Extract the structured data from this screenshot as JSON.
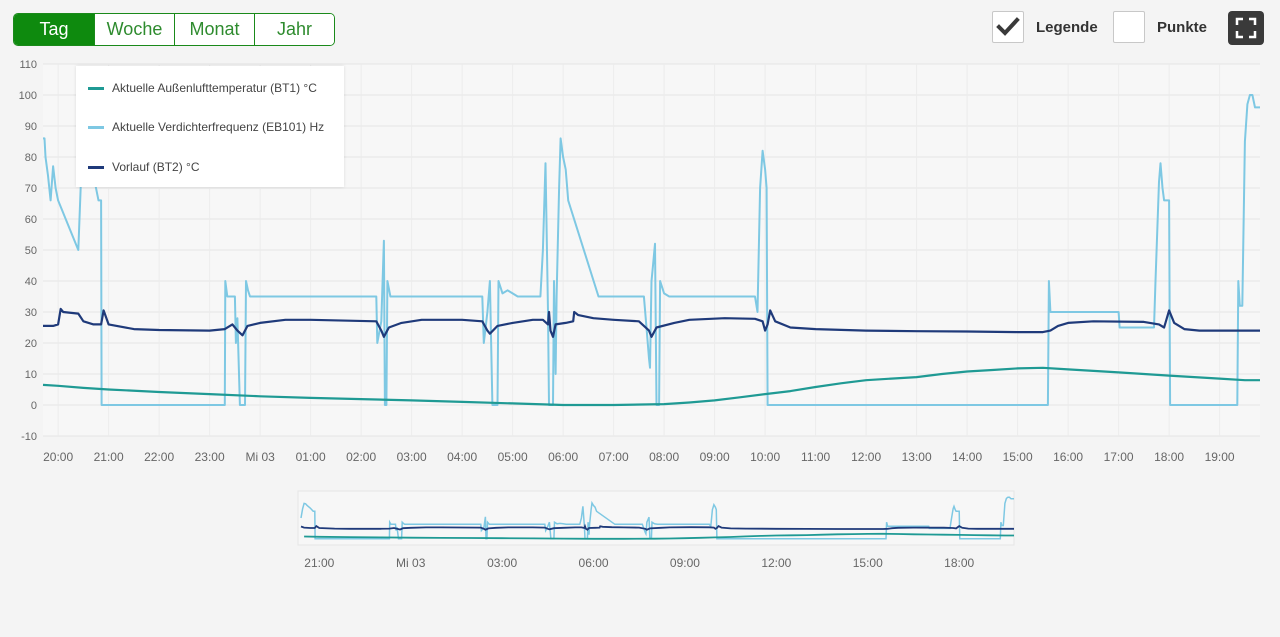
{
  "toolbar": {
    "ranges": [
      "Tag",
      "Woche",
      "Monat",
      "Jahr"
    ],
    "active_range": "Tag",
    "legend_label": "Legende",
    "legend_checked": true,
    "points_label": "Punkte",
    "points_checked": false,
    "fullscreen_icon": "fullscreen-icon"
  },
  "colors": {
    "accent": "#0e8a0e",
    "outdoor": "#1f9a94",
    "compressor": "#7ec8e3",
    "flow": "#1f3a7a"
  },
  "chart_data": {
    "type": "line",
    "ylim": [
      -10,
      110
    ],
    "yticks": [
      -10,
      0,
      10,
      20,
      30,
      40,
      50,
      60,
      70,
      80,
      90,
      100,
      110
    ],
    "x_range_hours": [
      19.7,
      19.82
    ],
    "xticks": [
      {
        "h": 20,
        "label": "20:00"
      },
      {
        "h": 21,
        "label": "21:00"
      },
      {
        "h": 22,
        "label": "22:00"
      },
      {
        "h": 23,
        "label": "23:00"
      },
      {
        "h": 24,
        "label": "Mi 03"
      },
      {
        "h": 25,
        "label": "01:00"
      },
      {
        "h": 26,
        "label": "02:00"
      },
      {
        "h": 27,
        "label": "03:00"
      },
      {
        "h": 28,
        "label": "04:00"
      },
      {
        "h": 29,
        "label": "05:00"
      },
      {
        "h": 30,
        "label": "06:00"
      },
      {
        "h": 31,
        "label": "07:00"
      },
      {
        "h": 32,
        "label": "08:00"
      },
      {
        "h": 33,
        "label": "09:00"
      },
      {
        "h": 34,
        "label": "10:00"
      },
      {
        "h": 35,
        "label": "11:00"
      },
      {
        "h": 36,
        "label": "12:00"
      },
      {
        "h": 37,
        "label": "13:00"
      },
      {
        "h": 38,
        "label": "14:00"
      },
      {
        "h": 39,
        "label": "15:00"
      },
      {
        "h": 40,
        "label": "16:00"
      },
      {
        "h": 41,
        "label": "17:00"
      },
      {
        "h": 42,
        "label": "18:00"
      },
      {
        "h": 43,
        "label": "19:00"
      }
    ],
    "nav_xticks": [
      {
        "h": 21,
        "label": "21:00"
      },
      {
        "h": 24,
        "label": "Mi 03"
      },
      {
        "h": 27,
        "label": "03:00"
      },
      {
        "h": 30,
        "label": "06:00"
      },
      {
        "h": 33,
        "label": "09:00"
      },
      {
        "h": 36,
        "label": "12:00"
      },
      {
        "h": 39,
        "label": "15:00"
      },
      {
        "h": 42,
        "label": "18:00"
      }
    ],
    "series": [
      {
        "name": "Aktuelle Außenlufttemperatur (BT1) °C",
        "key": "outdoor",
        "points": [
          [
            19.7,
            6.5
          ],
          [
            20.0,
            6.2
          ],
          [
            20.5,
            5.5
          ],
          [
            21.0,
            5.0
          ],
          [
            22.0,
            4.2
          ],
          [
            23.0,
            3.5
          ],
          [
            24.0,
            2.8
          ],
          [
            25.0,
            2.3
          ],
          [
            26.0,
            1.9
          ],
          [
            27.0,
            1.5
          ],
          [
            28.0,
            1.0
          ],
          [
            29.0,
            0.5
          ],
          [
            30.0,
            0.0
          ],
          [
            31.0,
            0.0
          ],
          [
            32.0,
            0.3
          ],
          [
            32.5,
            0.8
          ],
          [
            33.0,
            1.5
          ],
          [
            33.5,
            2.5
          ],
          [
            34.0,
            3.5
          ],
          [
            34.5,
            4.5
          ],
          [
            35.0,
            5.8
          ],
          [
            35.5,
            7.0
          ],
          [
            36.0,
            8.0
          ],
          [
            36.5,
            8.5
          ],
          [
            37.0,
            9.0
          ],
          [
            37.5,
            10.0
          ],
          [
            38.0,
            10.8
          ],
          [
            38.5,
            11.3
          ],
          [
            39.0,
            11.8
          ],
          [
            39.5,
            12.0
          ],
          [
            40.0,
            11.5
          ],
          [
            40.5,
            11.0
          ],
          [
            41.0,
            10.5
          ],
          [
            41.5,
            10.0
          ],
          [
            42.0,
            9.5
          ],
          [
            42.5,
            9.0
          ],
          [
            43.0,
            8.5
          ],
          [
            43.5,
            8.0
          ],
          [
            43.8,
            8.0
          ]
        ]
      },
      {
        "name": "Aktuelle Verdichterfrequenz (EB101) Hz",
        "key": "compressor",
        "points": [
          [
            19.7,
            86
          ],
          [
            19.73,
            86
          ],
          [
            19.75,
            80
          ],
          [
            19.8,
            74
          ],
          [
            19.85,
            66
          ],
          [
            19.9,
            77
          ],
          [
            19.95,
            70
          ],
          [
            20.0,
            66
          ],
          [
            20.4,
            50
          ],
          [
            20.45,
            72
          ],
          [
            20.5,
            85
          ],
          [
            20.55,
            84
          ],
          [
            20.6,
            80
          ],
          [
            20.7,
            74
          ],
          [
            20.8,
            66
          ],
          [
            20.85,
            66
          ],
          [
            20.86,
            0
          ],
          [
            23.3,
            0
          ],
          [
            23.31,
            40
          ],
          [
            23.35,
            35
          ],
          [
            23.5,
            35
          ],
          [
            23.52,
            20
          ],
          [
            23.55,
            28
          ],
          [
            23.6,
            0
          ],
          [
            23.7,
            0
          ],
          [
            23.72,
            40
          ],
          [
            23.76,
            37
          ],
          [
            23.8,
            35
          ],
          [
            26.3,
            35
          ],
          [
            26.32,
            20
          ],
          [
            26.4,
            27
          ],
          [
            26.45,
            53
          ],
          [
            26.47,
            0
          ],
          [
            26.5,
            0
          ],
          [
            26.52,
            40
          ],
          [
            26.58,
            35
          ],
          [
            28.4,
            35
          ],
          [
            28.43,
            20
          ],
          [
            28.5,
            30
          ],
          [
            28.55,
            40
          ],
          [
            28.6,
            0
          ],
          [
            28.7,
            0
          ],
          [
            28.72,
            40
          ],
          [
            28.8,
            36
          ],
          [
            28.9,
            37
          ],
          [
            29.0,
            36
          ],
          [
            29.1,
            35
          ],
          [
            29.55,
            35
          ],
          [
            29.6,
            50
          ],
          [
            29.65,
            78
          ],
          [
            29.7,
            30
          ],
          [
            29.72,
            0
          ],
          [
            29.8,
            0
          ],
          [
            29.82,
            40
          ],
          [
            29.85,
            10
          ],
          [
            29.87,
            35
          ],
          [
            29.92,
            70
          ],
          [
            29.95,
            86
          ],
          [
            30.0,
            80
          ],
          [
            30.05,
            76
          ],
          [
            30.08,
            70
          ],
          [
            30.1,
            66
          ],
          [
            30.7,
            35
          ],
          [
            31.6,
            35
          ],
          [
            31.65,
            25
          ],
          [
            31.7,
            15
          ],
          [
            31.72,
            12
          ],
          [
            31.75,
            40
          ],
          [
            31.78,
            45
          ],
          [
            31.82,
            52
          ],
          [
            31.85,
            0
          ],
          [
            31.9,
            0
          ],
          [
            31.92,
            40
          ],
          [
            32.0,
            36
          ],
          [
            32.1,
            35
          ],
          [
            33.8,
            35
          ],
          [
            33.85,
            30
          ],
          [
            33.9,
            70
          ],
          [
            33.95,
            82
          ],
          [
            34.0,
            76
          ],
          [
            34.03,
            70
          ],
          [
            34.05,
            0
          ],
          [
            39.6,
            0
          ],
          [
            39.62,
            40
          ],
          [
            39.65,
            30
          ],
          [
            41.0,
            30
          ],
          [
            41.02,
            25
          ],
          [
            41.7,
            25
          ],
          [
            41.73,
            40
          ],
          [
            41.8,
            72
          ],
          [
            41.83,
            78
          ],
          [
            41.87,
            70
          ],
          [
            41.9,
            66
          ],
          [
            42.0,
            66
          ],
          [
            42.02,
            0
          ],
          [
            43.35,
            0
          ],
          [
            43.37,
            40
          ],
          [
            43.4,
            32
          ],
          [
            43.45,
            32
          ],
          [
            43.5,
            85
          ],
          [
            43.55,
            97
          ],
          [
            43.6,
            100
          ],
          [
            43.65,
            100
          ],
          [
            43.7,
            96
          ],
          [
            43.8,
            96
          ]
        ]
      },
      {
        "name": "Vorlauf (BT2) °C",
        "key": "flow",
        "points": [
          [
            19.7,
            25.5
          ],
          [
            19.9,
            25.5
          ],
          [
            20.0,
            26
          ],
          [
            20.05,
            31
          ],
          [
            20.1,
            30
          ],
          [
            20.4,
            29.5
          ],
          [
            20.5,
            27
          ],
          [
            20.7,
            26
          ],
          [
            20.85,
            26
          ],
          [
            20.9,
            30.5
          ],
          [
            21.0,
            26
          ],
          [
            21.5,
            24.5
          ],
          [
            22.0,
            24.2
          ],
          [
            23.0,
            24
          ],
          [
            23.3,
            24.5
          ],
          [
            23.45,
            26
          ],
          [
            23.55,
            24
          ],
          [
            23.65,
            22.5
          ],
          [
            23.75,
            25.5
          ],
          [
            24.0,
            26.5
          ],
          [
            24.5,
            27.5
          ],
          [
            25.0,
            27.5
          ],
          [
            26.3,
            27
          ],
          [
            26.4,
            24
          ],
          [
            26.45,
            22
          ],
          [
            26.55,
            25
          ],
          [
            26.8,
            26.5
          ],
          [
            27.2,
            27.5
          ],
          [
            28.0,
            27.5
          ],
          [
            28.4,
            27
          ],
          [
            28.5,
            24
          ],
          [
            28.55,
            23
          ],
          [
            28.7,
            25.5
          ],
          [
            29.0,
            26.5
          ],
          [
            29.4,
            27.5
          ],
          [
            29.6,
            27.5
          ],
          [
            29.7,
            26
          ],
          [
            29.72,
            30
          ],
          [
            29.75,
            24
          ],
          [
            29.8,
            22
          ],
          [
            29.85,
            26
          ],
          [
            30.05,
            26.5
          ],
          [
            30.2,
            27
          ],
          [
            30.22,
            30
          ],
          [
            30.3,
            29
          ],
          [
            30.6,
            28
          ],
          [
            31.0,
            27.5
          ],
          [
            31.5,
            27
          ],
          [
            31.7,
            24
          ],
          [
            31.75,
            22
          ],
          [
            31.85,
            25
          ],
          [
            32.2,
            26.5
          ],
          [
            32.5,
            27.5
          ],
          [
            33.2,
            28
          ],
          [
            33.8,
            27.8
          ],
          [
            33.95,
            27
          ],
          [
            34.0,
            24
          ],
          [
            34.05,
            26
          ],
          [
            34.1,
            30.5
          ],
          [
            34.2,
            27
          ],
          [
            34.5,
            25
          ],
          [
            35.0,
            24.5
          ],
          [
            36.0,
            24
          ],
          [
            37.0,
            23.8
          ],
          [
            38.0,
            23.7
          ],
          [
            39.0,
            23.5
          ],
          [
            39.5,
            23.5
          ],
          [
            39.65,
            24
          ],
          [
            39.8,
            25.5
          ],
          [
            40.0,
            26.5
          ],
          [
            40.5,
            27
          ],
          [
            41.5,
            26.8
          ],
          [
            41.8,
            26
          ],
          [
            41.9,
            25
          ],
          [
            42.0,
            30.5
          ],
          [
            42.1,
            26.5
          ],
          [
            42.3,
            24.5
          ],
          [
            42.6,
            24
          ],
          [
            43.0,
            24
          ],
          [
            43.8,
            24
          ]
        ]
      }
    ]
  }
}
